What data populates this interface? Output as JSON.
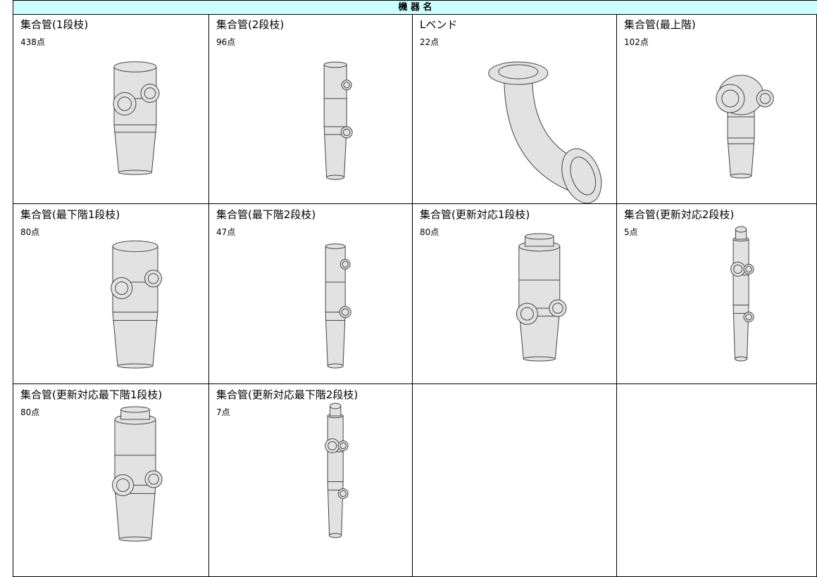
{
  "header": {
    "title": "機 器 名"
  },
  "items": [
    {
      "name": "集合管(1段枝)",
      "count": "438点"
    },
    {
      "name": "集合管(2段枝)",
      "count": "96点"
    },
    {
      "name": "Lベンド",
      "count": "22点"
    },
    {
      "name": "集合管(最上階)",
      "count": "102点"
    },
    {
      "name": "集合管(最下階1段枝)",
      "count": "80点"
    },
    {
      "name": "集合管(最下階2段枝)",
      "count": "47点"
    },
    {
      "name": "集合管(更新対応1段枝)",
      "count": "80点"
    },
    {
      "name": "集合管(更新対応2段枝)",
      "count": "5点"
    },
    {
      "name": "集合管(更新対応最下階1段枝)",
      "count": "80点"
    },
    {
      "name": "集合管(更新対応最下階2段枝)",
      "count": "7点"
    }
  ]
}
